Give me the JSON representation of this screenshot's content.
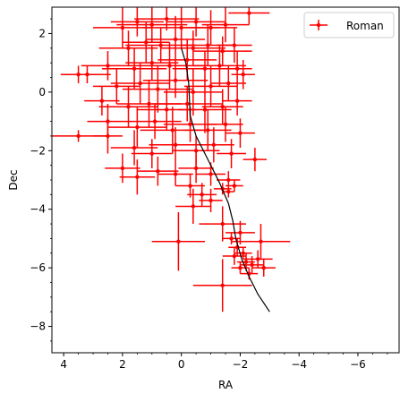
{
  "chart_data": {
    "type": "scatter",
    "title": "",
    "xlabel": "RA",
    "ylabel": "Dec",
    "xlim": [
      4.4,
      -7.4
    ],
    "ylim": [
      -8.9,
      2.9
    ],
    "x_inverted": true,
    "x_ticks": [
      4,
      2,
      0,
      -2,
      -4,
      -6
    ],
    "x_tick_labels": [
      "4",
      "2",
      "0",
      "−2",
      "−4",
      "−6"
    ],
    "y_ticks": [
      2,
      0,
      -2,
      -4,
      -6,
      -8
    ],
    "y_tick_labels": [
      "2",
      "0",
      "−2",
      "−4",
      "−6",
      "−8"
    ],
    "grid": false,
    "legend": {
      "position": "top-right",
      "entries": [
        "Roman"
      ]
    },
    "series": [
      {
        "name": "Roman",
        "kind": "errorbar",
        "color": "#ff0000",
        "points": [
          {
            "x": 2.0,
            "y": 2.2,
            "xerr": 1.0,
            "yerr": 0.7
          },
          {
            "x": 1.5,
            "y": 2.4,
            "xerr": 0.9,
            "yerr": 0.5
          },
          {
            "x": 1.0,
            "y": 2.3,
            "xerr": 1.2,
            "yerr": 0.6
          },
          {
            "x": 0.5,
            "y": 2.5,
            "xerr": 1.1,
            "yerr": 0.4
          },
          {
            "x": 0.0,
            "y": 2.2,
            "xerr": 1.3,
            "yerr": 0.7
          },
          {
            "x": -0.5,
            "y": 2.4,
            "xerr": 1.0,
            "yerr": 0.5
          },
          {
            "x": -1.0,
            "y": 2.2,
            "xerr": 0.9,
            "yerr": 0.6
          },
          {
            "x": -1.5,
            "y": 2.3,
            "xerr": 0.8,
            "yerr": 0.6
          },
          {
            "x": -2.3,
            "y": 2.7,
            "xerr": 0.7,
            "yerr": 0.4
          },
          {
            "x": 1.8,
            "y": 1.5,
            "xerr": 1.0,
            "yerr": 0.6
          },
          {
            "x": 1.2,
            "y": 1.7,
            "xerr": 0.8,
            "yerr": 0.7
          },
          {
            "x": 0.7,
            "y": 1.6,
            "xerr": 1.2,
            "yerr": 0.6
          },
          {
            "x": 0.2,
            "y": 1.8,
            "xerr": 1.0,
            "yerr": 0.8
          },
          {
            "x": -0.4,
            "y": 1.5,
            "xerr": 1.1,
            "yerr": 0.6
          },
          {
            "x": -0.9,
            "y": 1.6,
            "xerr": 0.9,
            "yerr": 0.7
          },
          {
            "x": -1.4,
            "y": 1.4,
            "xerr": 1.0,
            "yerr": 0.5
          },
          {
            "x": -1.8,
            "y": 1.6,
            "xerr": 0.6,
            "yerr": 0.6
          },
          {
            "x": 2.5,
            "y": 0.9,
            "xerr": 0.9,
            "yerr": 0.5
          },
          {
            "x": 1.6,
            "y": 0.8,
            "xerr": 1.1,
            "yerr": 0.7
          },
          {
            "x": 1.0,
            "y": 1.0,
            "xerr": 0.9,
            "yerr": 0.6
          },
          {
            "x": 0.4,
            "y": 0.9,
            "xerr": 1.2,
            "yerr": 0.8
          },
          {
            "x": -0.2,
            "y": 1.1,
            "xerr": 1.0,
            "yerr": 0.7
          },
          {
            "x": -0.8,
            "y": 0.8,
            "xerr": 1.1,
            "yerr": 0.6
          },
          {
            "x": -1.3,
            "y": 0.9,
            "xerr": 0.9,
            "yerr": 0.7
          },
          {
            "x": -1.9,
            "y": 0.8,
            "xerr": 0.5,
            "yerr": 0.6
          },
          {
            "x": 3.2,
            "y": 0.6,
            "xerr": 0.8,
            "yerr": 0.3
          },
          {
            "x": 2.2,
            "y": 0.2,
            "xerr": 0.8,
            "yerr": 0.6
          },
          {
            "x": 1.4,
            "y": 0.3,
            "xerr": 1.0,
            "yerr": 0.7
          },
          {
            "x": 0.8,
            "y": 0.1,
            "xerr": 1.2,
            "yerr": 0.8
          },
          {
            "x": 0.2,
            "y": 0.4,
            "xerr": 1.1,
            "yerr": 0.6
          },
          {
            "x": -0.4,
            "y": 0.0,
            "xerr": 1.0,
            "yerr": 0.8
          },
          {
            "x": -1.0,
            "y": 0.2,
            "xerr": 0.9,
            "yerr": 0.7
          },
          {
            "x": -1.6,
            "y": 0.3,
            "xerr": 0.6,
            "yerr": 0.6
          },
          {
            "x": -2.1,
            "y": 0.6,
            "xerr": 0.4,
            "yerr": 0.5
          },
          {
            "x": 2.7,
            "y": -0.3,
            "xerr": 0.6,
            "yerr": 0.5
          },
          {
            "x": 1.8,
            "y": -0.5,
            "xerr": 1.0,
            "yerr": 0.7
          },
          {
            "x": 1.1,
            "y": -0.4,
            "xerr": 1.1,
            "yerr": 0.8
          },
          {
            "x": 0.5,
            "y": -0.6,
            "xerr": 1.0,
            "yerr": 0.7
          },
          {
            "x": -0.2,
            "y": -0.4,
            "xerr": 1.2,
            "yerr": 0.6
          },
          {
            "x": -0.8,
            "y": -0.6,
            "xerr": 0.9,
            "yerr": 0.8
          },
          {
            "x": -1.4,
            "y": -0.5,
            "xerr": 0.7,
            "yerr": 0.6
          },
          {
            "x": -1.9,
            "y": -0.3,
            "xerr": 0.5,
            "yerr": 0.5
          },
          {
            "x": 3.5,
            "y": -1.5,
            "xerr": 1.0,
            "yerr": 0.2
          },
          {
            "x": 2.5,
            "y": -1.0,
            "xerr": 0.7,
            "yerr": 0.6
          },
          {
            "x": 1.5,
            "y": -1.2,
            "xerr": 1.0,
            "yerr": 0.7
          },
          {
            "x": 0.9,
            "y": -1.0,
            "xerr": 0.9,
            "yerr": 0.6
          },
          {
            "x": 0.3,
            "y": -1.3,
            "xerr": 1.1,
            "yerr": 0.8
          },
          {
            "x": -0.3,
            "y": -1.1,
            "xerr": 0.9,
            "yerr": 0.6
          },
          {
            "x": -0.9,
            "y": -1.3,
            "xerr": 0.8,
            "yerr": 0.7
          },
          {
            "x": -1.5,
            "y": -1.1,
            "xerr": 0.6,
            "yerr": 0.6
          },
          {
            "x": -2.0,
            "y": -1.4,
            "xerr": 0.5,
            "yerr": 0.5
          },
          {
            "x": 2.5,
            "y": -1.5,
            "xerr": 0.5,
            "yerr": 0.6
          },
          {
            "x": 1.6,
            "y": -1.9,
            "xerr": 0.8,
            "yerr": 0.6
          },
          {
            "x": 1.0,
            "y": -2.1,
            "xerr": 0.7,
            "yerr": 0.5
          },
          {
            "x": 0.2,
            "y": -1.8,
            "xerr": 0.9,
            "yerr": 0.6
          },
          {
            "x": -0.5,
            "y": -2.0,
            "xerr": 0.8,
            "yerr": 0.5
          },
          {
            "x": -1.1,
            "y": -1.8,
            "xerr": 0.7,
            "yerr": 0.6
          },
          {
            "x": -1.7,
            "y": -2.1,
            "xerr": 0.5,
            "yerr": 0.5
          },
          {
            "x": -2.5,
            "y": -2.3,
            "xerr": 0.4,
            "yerr": 0.4
          },
          {
            "x": 2.0,
            "y": -2.6,
            "xerr": 0.6,
            "yerr": 0.5
          },
          {
            "x": 1.5,
            "y": -2.9,
            "xerr": 0.6,
            "yerr": 0.6
          },
          {
            "x": 0.8,
            "y": -2.7,
            "xerr": 0.7,
            "yerr": 0.5
          },
          {
            "x": 0.2,
            "y": -2.8,
            "xerr": 0.6,
            "yerr": 0.4
          },
          {
            "x": -0.5,
            "y": -2.6,
            "xerr": 0.6,
            "yerr": 0.5
          },
          {
            "x": -1.0,
            "y": -2.8,
            "xerr": 0.5,
            "yerr": 0.4
          },
          {
            "x": -1.6,
            "y": -3.0,
            "xerr": 0.4,
            "yerr": 0.3
          },
          {
            "x": -1.8,
            "y": -3.2,
            "xerr": 0.3,
            "yerr": 0.2
          },
          {
            "x": -1.4,
            "y": -3.3,
            "xerr": 0.3,
            "yerr": 0.2
          },
          {
            "x": -1.6,
            "y": -3.4,
            "xerr": 0.2,
            "yerr": 0.2
          },
          {
            "x": -0.3,
            "y": -3.2,
            "xerr": 0.5,
            "yerr": 0.4
          },
          {
            "x": -0.7,
            "y": -3.5,
            "xerr": 0.5,
            "yerr": 0.4
          },
          {
            "x": -0.4,
            "y": -3.9,
            "xerr": 0.6,
            "yerr": 0.6
          },
          {
            "x": -1.0,
            "y": -3.7,
            "xerr": 0.4,
            "yerr": 0.4
          },
          {
            "x": 0.1,
            "y": -5.1,
            "xerr": 0.9,
            "yerr": 1.0
          },
          {
            "x": -1.4,
            "y": -4.5,
            "xerr": 0.8,
            "yerr": 0.6
          },
          {
            "x": -2.0,
            "y": -4.8,
            "xerr": 0.5,
            "yerr": 0.4
          },
          {
            "x": -2.7,
            "y": -5.1,
            "xerr": 1.0,
            "yerr": 0.6
          },
          {
            "x": -1.7,
            "y": -5.0,
            "xerr": 0.3,
            "yerr": 0.2
          },
          {
            "x": -1.9,
            "y": -5.3,
            "xerr": 0.3,
            "yerr": 0.3
          },
          {
            "x": -2.1,
            "y": -5.5,
            "xerr": 0.3,
            "yerr": 0.2
          },
          {
            "x": -1.8,
            "y": -5.6,
            "xerr": 0.4,
            "yerr": 0.3
          },
          {
            "x": -2.2,
            "y": -5.8,
            "xerr": 0.3,
            "yerr": 0.3
          },
          {
            "x": -2.4,
            "y": -5.9,
            "xerr": 0.4,
            "yerr": 0.3
          },
          {
            "x": -2.0,
            "y": -6.0,
            "xerr": 0.3,
            "yerr": 0.2
          },
          {
            "x": -2.3,
            "y": -6.2,
            "xerr": 0.3,
            "yerr": 0.2
          },
          {
            "x": -2.6,
            "y": -5.7,
            "xerr": 0.5,
            "yerr": 0.3
          },
          {
            "x": -2.8,
            "y": -6.0,
            "xerr": 0.4,
            "yerr": 0.3
          },
          {
            "x": -1.4,
            "y": -6.6,
            "xerr": 1.0,
            "yerr": 0.9
          },
          {
            "x": 3.5,
            "y": 0.6,
            "xerr": 0.6,
            "yerr": 0.3
          }
        ]
      },
      {
        "name": "",
        "kind": "line",
        "color": "#000000",
        "x": [
          0.0,
          -0.15,
          -0.25,
          -0.3,
          -0.5,
          -0.9,
          -1.3,
          -1.6,
          -1.75,
          -1.85,
          -2.05,
          -2.3,
          -2.6,
          -3.0
        ],
        "y": [
          1.5,
          1.0,
          0.3,
          -0.8,
          -1.5,
          -2.3,
          -3.1,
          -3.8,
          -4.4,
          -5.0,
          -5.7,
          -6.3,
          -6.9,
          -7.5
        ]
      }
    ]
  }
}
